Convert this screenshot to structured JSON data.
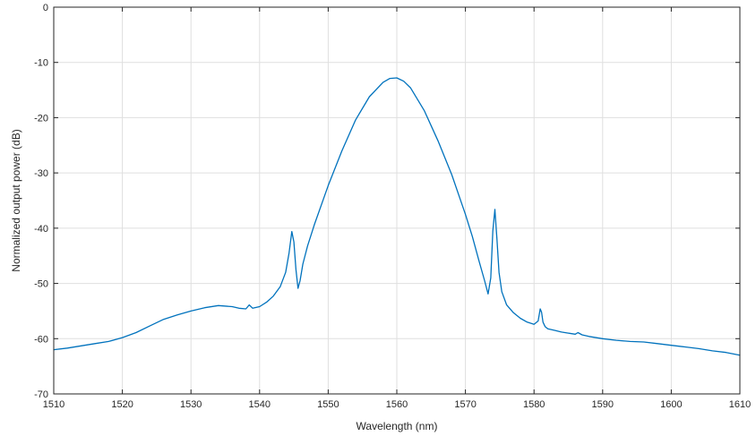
{
  "chart_data": {
    "type": "line",
    "title": "",
    "xlabel": "Wavelength (nm)",
    "ylabel": "Normalized output power (dB)",
    "xlim": [
      1510,
      1610
    ],
    "ylim": [
      -70,
      0
    ],
    "x_ticks": [
      1510,
      1520,
      1530,
      1540,
      1550,
      1560,
      1570,
      1580,
      1590,
      1600,
      1610
    ],
    "y_ticks": [
      0,
      -10,
      -20,
      -30,
      -40,
      -50,
      -60,
      -70
    ],
    "grid": true,
    "line_color": "#0072BD",
    "series": [
      {
        "x": [
          1510,
          1512,
          1514,
          1516,
          1518,
          1520,
          1522,
          1524,
          1526,
          1528,
          1530,
          1532,
          1534,
          1536,
          1537,
          1538,
          1538.5,
          1539,
          1540,
          1541,
          1542,
          1543,
          1543.8,
          1544.3,
          1544.7,
          1545.0,
          1545.3,
          1545.6,
          1545.9,
          1546.3,
          1547,
          1548,
          1550,
          1552,
          1554,
          1556,
          1558,
          1559,
          1560,
          1561,
          1562,
          1564,
          1566,
          1568,
          1570,
          1571,
          1572,
          1572.8,
          1573.3,
          1573.7,
          1574.0,
          1574.3,
          1574.6,
          1574.9,
          1575.3,
          1576,
          1577,
          1578,
          1579,
          1580,
          1580.6,
          1580.9,
          1581.1,
          1581.3,
          1581.6,
          1582,
          1583,
          1584,
          1585,
          1586,
          1586.4,
          1587,
          1588,
          1590,
          1592,
          1594,
          1596,
          1598,
          1600,
          1602,
          1604,
          1606,
          1608,
          1610
        ],
        "y": [
          -62.0,
          -61.7,
          -61.3,
          -60.9,
          -60.5,
          -59.8,
          -58.9,
          -57.7,
          -56.5,
          -55.7,
          -55.0,
          -54.4,
          -54.0,
          -54.2,
          -54.5,
          -54.6,
          -53.9,
          -54.5,
          -54.2,
          -53.4,
          -52.3,
          -50.6,
          -48.0,
          -44.5,
          -40.6,
          -42.5,
          -47.5,
          -50.9,
          -49.5,
          -46.5,
          -43.2,
          -39.3,
          -32.3,
          -26.0,
          -20.4,
          -16.2,
          -13.6,
          -12.9,
          -12.8,
          -13.4,
          -14.6,
          -18.7,
          -24.2,
          -30.3,
          -37.5,
          -41.5,
          -46.0,
          -49.5,
          -51.9,
          -49.0,
          -40.5,
          -36.6,
          -42.0,
          -48.0,
          -51.5,
          -53.9,
          -55.3,
          -56.3,
          -57.0,
          -57.4,
          -56.8,
          -54.6,
          -55.2,
          -57.0,
          -57.8,
          -58.2,
          -58.5,
          -58.8,
          -59.0,
          -59.2,
          -58.9,
          -59.3,
          -59.6,
          -60.0,
          -60.3,
          -60.5,
          -60.6,
          -60.9,
          -61.2,
          -61.5,
          -61.8,
          -62.2,
          -62.5,
          -63.0
        ]
      }
    ]
  }
}
